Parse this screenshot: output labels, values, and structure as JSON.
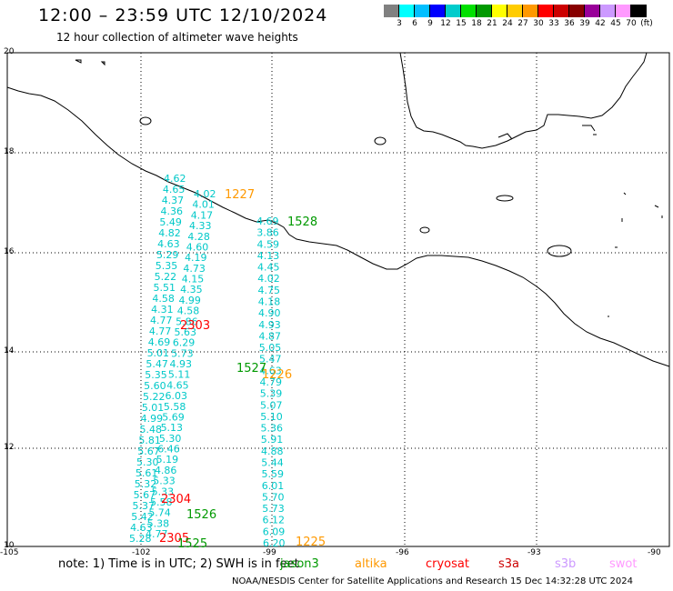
{
  "title": "12:00 – 23:59 UTC 12/10/2024",
  "subtitle": "12 hour collection of altimeter wave heights",
  "scale": {
    "unit": "(ft)",
    "colors": [
      "#808080",
      "#00ffff",
      "#00bfff",
      "#0000ff",
      "#00cccc",
      "#00e000",
      "#009900",
      "#ffff00",
      "#ffcc00",
      "#ff9900",
      "#ff0000",
      "#cc0000",
      "#880000",
      "#990099",
      "#cc99ff",
      "#ff99ff",
      "#000000"
    ],
    "labels": [
      "3",
      "6",
      "9",
      "12",
      "15",
      "18",
      "21",
      "24",
      "27",
      "30",
      "33",
      "36",
      "39",
      "42",
      "45",
      "70",
      "(ft)"
    ]
  },
  "lat_labels": [
    "20",
    "18",
    "16",
    "14",
    "12",
    "10"
  ],
  "lon_labels": [
    "-105",
    "-102",
    "-99",
    "-96",
    "-93",
    "-90"
  ],
  "note": "note: 1) Time is in UTC; 2) SWH is in feet",
  "satellites": [
    {
      "name": "jason3",
      "color": "#009900"
    },
    {
      "name": "altika",
      "color": "#ff9900"
    },
    {
      "name": "cryosat",
      "color": "#ff0000"
    },
    {
      "name": "s3a",
      "color": "#cc0000"
    },
    {
      "name": "s3b",
      "color": "#cc99ff"
    },
    {
      "name": "swot",
      "color": "#ff99ff"
    }
  ],
  "footer": "NOAA/NESDIS Center for Satellite Applications and Research    15 Dec 14:32:28 UTC 2024",
  "wave_heights_ft": {
    "track_a": [
      "4.62",
      "4.65",
      "4.37",
      "4.36",
      "5.49",
      "4.82",
      "4.63",
      "5.29",
      "5.35",
      "5.22",
      "5.51",
      "4.58",
      "4.31",
      "4.77",
      "4.77",
      "4.69",
      "5.01",
      "5.47",
      "5.35",
      "5.60",
      "5.22",
      "5.01",
      "4.99",
      "5.48",
      "5.81",
      "5.67",
      "5.30",
      "5.61",
      "5.32",
      "5.67",
      "5.37",
      "5.42",
      "4.63",
      "5.28"
    ],
    "track_b": [
      "4.02",
      "4.01",
      "4.17",
      "4.33",
      "4.28",
      "4.60",
      "4.19",
      "4.73",
      "4.15",
      "4.35",
      "4.99",
      "4.58",
      "5.86",
      "5.63",
      "6.29",
      "5.73",
      "4.93",
      "5.11",
      "4.65",
      "6.03",
      "5.58",
      "5.69",
      "5.13",
      "5.30",
      "6.46",
      "5.19",
      "4.86",
      "5.33",
      "5.33",
      "5.58",
      "5.74",
      "5.38",
      "4.77"
    ],
    "track_c": [
      "4.69",
      "3.86",
      "4.59",
      "4.13",
      "4.45",
      "4.02",
      "4.75",
      "4.18",
      "4.90",
      "4.93",
      "4.87",
      "5.05",
      "5.47",
      "4.63",
      "4.79",
      "5.39",
      "5.07",
      "5.10",
      "5.36",
      "5.91",
      "4.88",
      "5.44",
      "5.59",
      "6.01",
      "5.70",
      "5.73",
      "6.12",
      "6.09",
      "6.20"
    ]
  },
  "pass_times": [
    {
      "time": "1227",
      "sat": "altika",
      "color": "#ff9900"
    },
    {
      "time": "1528",
      "sat": "jason3",
      "color": "#009900"
    },
    {
      "time": "2303",
      "sat": "cryosat",
      "color": "#ff0000"
    },
    {
      "time": "1527",
      "sat": "jason3",
      "color": "#009900"
    },
    {
      "time": "1226",
      "sat": "altika",
      "color": "#ff9900"
    },
    {
      "time": "2304",
      "sat": "cryosat",
      "color": "#ff0000"
    },
    {
      "time": "1526",
      "sat": "jason3",
      "color": "#009900"
    },
    {
      "time": "2305",
      "sat": "cryosat",
      "color": "#ff0000"
    },
    {
      "time": "1525",
      "sat": "jason3",
      "color": "#009900"
    },
    {
      "time": "1225",
      "sat": "altika",
      "color": "#ff9900"
    }
  ],
  "colors": {
    "track_values": "#00c8c8",
    "grid": "#000000",
    "coast": "#000000"
  }
}
